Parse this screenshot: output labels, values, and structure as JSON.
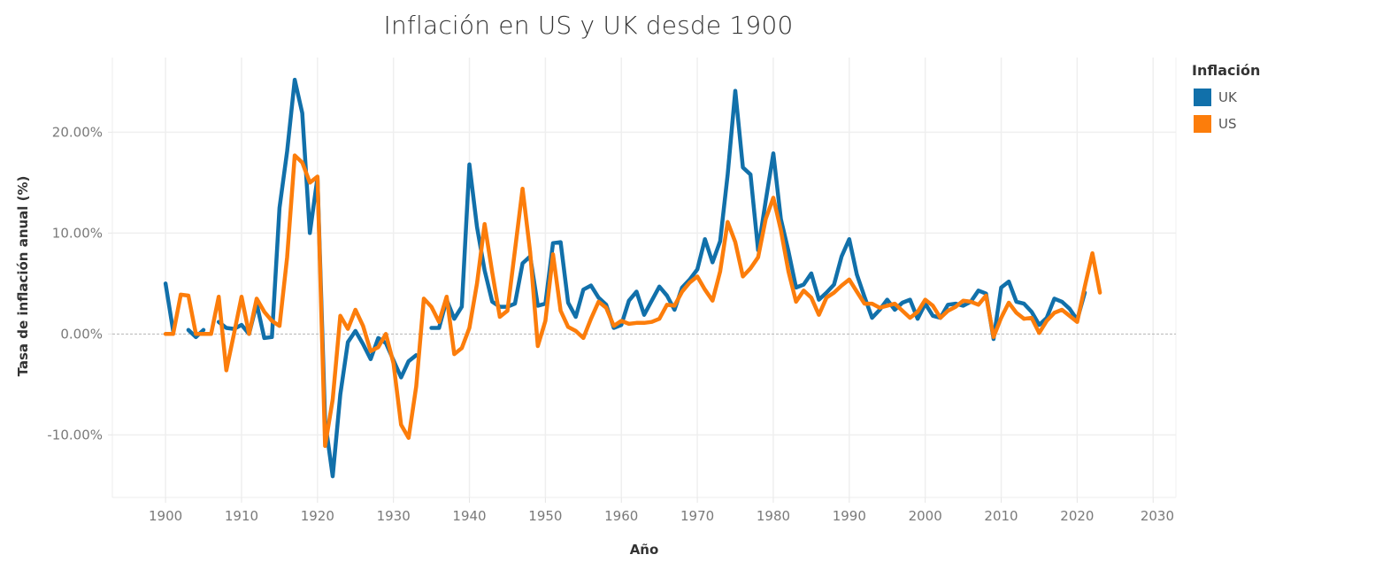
{
  "chart_data": {
    "type": "line",
    "title": "Inflación en US y UK desde 1900",
    "xlabel": "Año",
    "ylabel": "Tasa de inflación anual (%)",
    "xlim": [
      1893,
      2033
    ],
    "ylim": [
      -16.2,
      27.4
    ],
    "x_ticks": [
      1900,
      1910,
      1920,
      1930,
      1940,
      1950,
      1960,
      1970,
      1980,
      1990,
      2000,
      2010,
      2020,
      2030
    ],
    "y_ticks": [
      {
        "value": 20,
        "label": "20.00%"
      },
      {
        "value": 10,
        "label": "10.00%"
      },
      {
        "value": 0,
        "label": "0.00%"
      },
      {
        "value": -10,
        "label": "-10.00%"
      }
    ],
    "grid": true,
    "zero_line": "dashed",
    "legend": {
      "title": "Inflación",
      "position": "top-right"
    },
    "x": [
      1900,
      1901,
      1902,
      1903,
      1904,
      1905,
      1906,
      1907,
      1908,
      1909,
      1910,
      1911,
      1912,
      1913,
      1914,
      1915,
      1916,
      1917,
      1918,
      1919,
      1920,
      1921,
      1922,
      1923,
      1924,
      1925,
      1926,
      1927,
      1928,
      1929,
      1930,
      1931,
      1932,
      1933,
      1934,
      1935,
      1936,
      1937,
      1938,
      1939,
      1940,
      1941,
      1942,
      1943,
      1944,
      1945,
      1946,
      1947,
      1948,
      1949,
      1950,
      1951,
      1952,
      1953,
      1954,
      1955,
      1956,
      1957,
      1958,
      1959,
      1960,
      1961,
      1962,
      1963,
      1964,
      1965,
      1966,
      1967,
      1968,
      1969,
      1970,
      1971,
      1972,
      1973,
      1974,
      1975,
      1976,
      1977,
      1978,
      1979,
      1980,
      1981,
      1982,
      1983,
      1984,
      1985,
      1986,
      1987,
      1988,
      1989,
      1990,
      1991,
      1992,
      1993,
      1994,
      1995,
      1996,
      1997,
      1998,
      1999,
      2000,
      2001,
      2002,
      2003,
      2004,
      2005,
      2006,
      2007,
      2008,
      2009,
      2010,
      2011,
      2012,
      2013,
      2014,
      2015,
      2016,
      2017,
      2018,
      2019,
      2020,
      2021,
      2022,
      2023
    ],
    "series": [
      {
        "name": "UK",
        "color": "#1170AA",
        "values": [
          5.0,
          0.3,
          null,
          0.4,
          -0.3,
          0.4,
          null,
          1.2,
          0.6,
          0.5,
          0.9,
          0.0,
          3.0,
          -0.4,
          -0.3,
          12.5,
          18.1,
          25.2,
          21.9,
          10.0,
          15.5,
          -8.6,
          -14.1,
          -6.0,
          -0.8,
          0.3,
          -1.0,
          -2.5,
          -0.4,
          -0.9,
          -2.6,
          -4.3,
          -2.7,
          -2.1,
          null,
          0.6,
          0.6,
          3.4,
          1.5,
          2.7,
          16.8,
          10.6,
          6.3,
          3.2,
          2.7,
          2.7,
          3.0,
          7.0,
          7.7,
          2.8,
          3.0,
          9.0,
          9.1,
          3.1,
          1.7,
          4.4,
          4.8,
          3.6,
          2.9,
          0.6,
          0.9,
          3.3,
          4.2,
          1.9,
          3.3,
          4.7,
          3.8,
          2.4,
          4.6,
          5.4,
          6.4,
          9.4,
          7.1,
          9.2,
          15.8,
          24.1,
          16.5,
          15.8,
          8.3,
          13.2,
          17.9,
          11.4,
          8.2,
          4.6,
          4.9,
          6.0,
          3.4,
          4.1,
          4.9,
          7.7,
          9.4,
          5.9,
          3.7,
          1.6,
          2.4,
          3.4,
          2.4,
          3.1,
          3.4,
          1.5,
          3.0,
          1.8,
          1.6,
          2.9,
          3.0,
          2.8,
          3.2,
          4.3,
          4.0,
          -0.5,
          4.6,
          5.2,
          3.2,
          3.0,
          2.2,
          0.9,
          1.6,
          3.5,
          3.2,
          2.5,
          1.4,
          4.1,
          null,
          null
        ]
      },
      {
        "name": "US",
        "color": "#FC7D0B",
        "values": [
          0.0,
          0.0,
          3.9,
          3.8,
          0.0,
          0.0,
          0.0,
          3.7,
          -3.6,
          0.0,
          3.7,
          0.0,
          3.5,
          2.2,
          1.3,
          0.8,
          7.6,
          17.7,
          17.0,
          15.0,
          15.6,
          -11.1,
          -6.5,
          1.8,
          0.5,
          2.4,
          0.8,
          -1.7,
          -1.3,
          0.0,
          -2.9,
          -9.0,
          -10.3,
          -5.2,
          3.5,
          2.7,
          1.2,
          3.7,
          -2.0,
          -1.4,
          0.6,
          5.0,
          10.9,
          6.1,
          1.7,
          2.3,
          8.3,
          14.4,
          8.1,
          -1.2,
          1.3,
          7.9,
          2.3,
          0.7,
          0.3,
          -0.4,
          1.5,
          3.2,
          2.6,
          0.8,
          1.3,
          1.0,
          1.1,
          1.1,
          1.2,
          1.5,
          2.9,
          2.8,
          4.2,
          5.1,
          5.7,
          4.4,
          3.3,
          6.2,
          11.1,
          9.1,
          5.7,
          6.5,
          7.6,
          11.4,
          13.5,
          10.3,
          6.2,
          3.2,
          4.3,
          3.6,
          1.9,
          3.6,
          4.1,
          4.8,
          5.4,
          4.2,
          3.0,
          3.0,
          2.6,
          2.8,
          3.0,
          2.3,
          1.6,
          2.2,
          3.4,
          2.8,
          1.6,
          2.3,
          2.7,
          3.3,
          3.2,
          2.9,
          3.8,
          -0.3,
          1.6,
          3.1,
          2.1,
          1.5,
          1.6,
          0.1,
          1.3,
          2.1,
          2.4,
          1.8,
          1.2,
          4.7,
          8.0,
          4.1
        ]
      }
    ]
  }
}
